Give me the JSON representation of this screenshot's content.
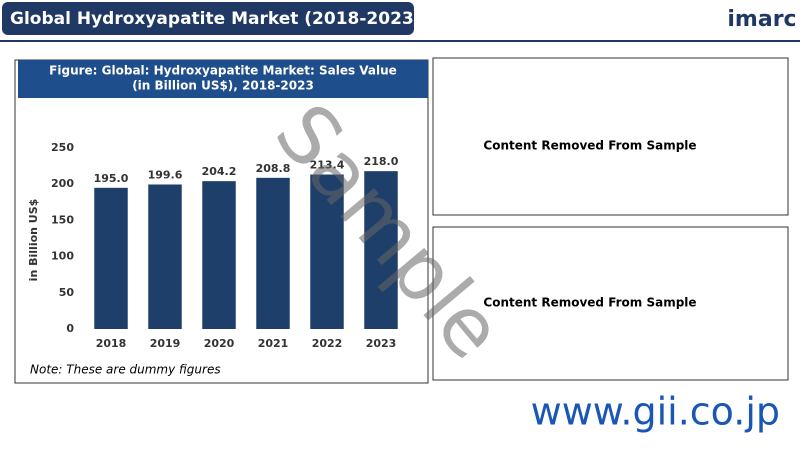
{
  "header": {
    "title": "Global Hydroxyapatite Market (2018-2023)",
    "logo": "imarc"
  },
  "chart_data": {
    "type": "bar",
    "title": [
      "Figure: Global: Hydroxyapatite Market: Sales Value",
      "(in Billion US$), 2018-2023"
    ],
    "y_label": "in Billion US$",
    "categories": [
      "2018",
      "2019",
      "2020",
      "2021",
      "2022",
      "2023"
    ],
    "values": [
      195.0,
      199.6,
      204.2,
      208.8,
      213.4,
      218.0
    ],
    "value_labels": [
      "195.0",
      "199.6",
      "204.2",
      "208.8",
      "213.4",
      "218.0"
    ],
    "color": "#1f3f6b",
    "ylim": [
      0,
      250
    ],
    "yticks": [
      0,
      50,
      100,
      150,
      200,
      250
    ],
    "grid": false,
    "note": "Note: These are dummy figures"
  },
  "panels": [
    "Content Removed From Sample",
    "Content Removed From Sample"
  ],
  "watermark": "Sample",
  "footer": "www.gii.co.jp"
}
